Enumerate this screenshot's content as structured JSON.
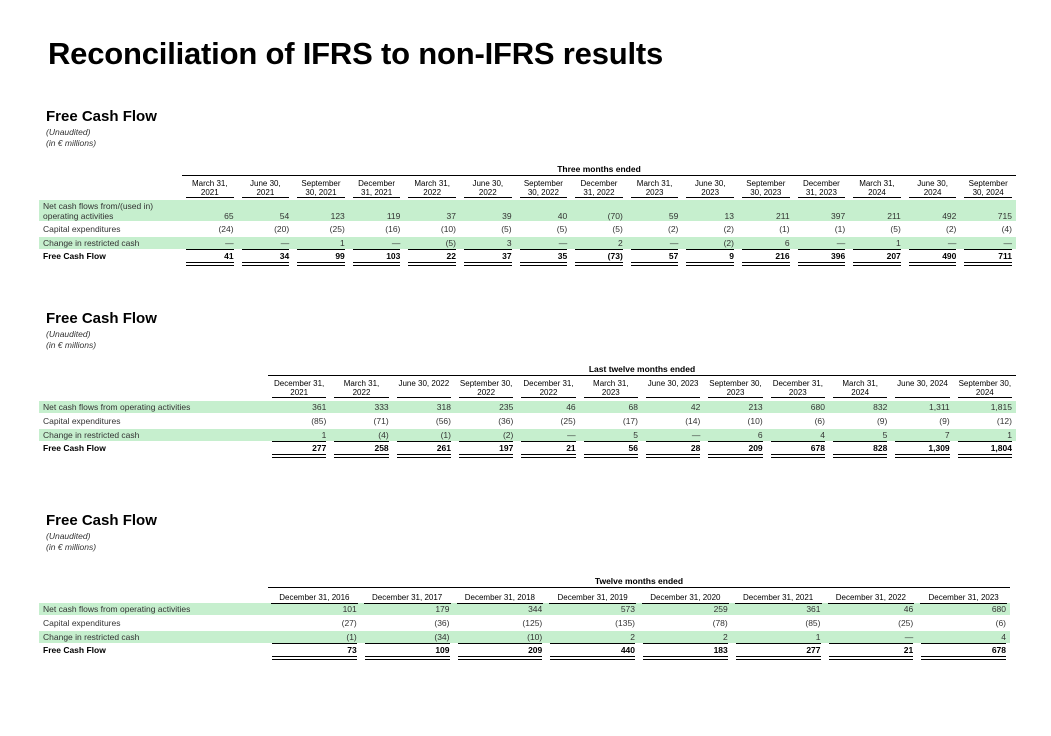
{
  "page_title": "Reconciliation of IFRS to non-IFRS results",
  "tables": [
    {
      "title": "Free Cash Flow",
      "subtitle1": "(Unaudited)",
      "subtitle2": "(in € millions)",
      "period": "Three months ended",
      "columns": [
        "March 31, 2021",
        "June 30, 2021",
        "September 30, 2021",
        "December 31, 2021",
        "March 31, 2022",
        "June 30, 2022",
        "September 30, 2022",
        "December 31, 2022",
        "March 31, 2023",
        "June 30, 2023",
        "September 30, 2023",
        "December 31, 2023",
        "March 31, 2024",
        "June 30, 2024",
        "September 30, 2024"
      ],
      "rows": [
        {
          "label": "Net cash flows from/(used in) operating activities",
          "values": [
            "65",
            "54",
            "123",
            "119",
            "37",
            "39",
            "40",
            "(70)",
            "59",
            "13",
            "211",
            "397",
            "211",
            "492",
            "715"
          ]
        },
        {
          "label": "Capital expenditures",
          "values": [
            "(24)",
            "(20)",
            "(25)",
            "(16)",
            "(10)",
            "(5)",
            "(5)",
            "(5)",
            "(2)",
            "(2)",
            "(1)",
            "(1)",
            "(5)",
            "(2)",
            "(4)"
          ]
        },
        {
          "label": "Change in restricted cash",
          "values": [
            "—",
            "—",
            "1",
            "—",
            "(5)",
            "3",
            "—",
            "2",
            "—",
            "(2)",
            "6",
            "—",
            "1",
            "—",
            "—"
          ]
        },
        {
          "label": "Free Cash Flow",
          "values": [
            "41",
            "34",
            "99",
            "103",
            "22",
            "37",
            "35",
            "(73)",
            "57",
            "9",
            "216",
            "396",
            "207",
            "490",
            "711"
          ]
        }
      ]
    },
    {
      "title": "Free Cash Flow",
      "subtitle1": "(Unaudited)",
      "subtitle2": "(in € millions)",
      "period": "Last twelve months ended",
      "columns": [
        "December 31, 2021",
        "March 31, 2022",
        "June 30, 2022",
        "September 30, 2022",
        "December 31, 2022",
        "March 31, 2023",
        "June 30, 2023",
        "September 30, 2023",
        "December 31, 2023",
        "March 31, 2024",
        "June 30, 2024",
        "September 30, 2024"
      ],
      "rows": [
        {
          "label": "Net cash flows from operating activities",
          "values": [
            "361",
            "333",
            "318",
            "235",
            "46",
            "68",
            "42",
            "213",
            "680",
            "832",
            "1,311",
            "1,815"
          ]
        },
        {
          "label": "Capital expenditures",
          "values": [
            "(85)",
            "(71)",
            "(56)",
            "(36)",
            "(25)",
            "(17)",
            "(14)",
            "(10)",
            "(6)",
            "(9)",
            "(9)",
            "(12)"
          ]
        },
        {
          "label": "Change in restricted cash",
          "values": [
            "1",
            "(4)",
            "(1)",
            "(2)",
            "—",
            "5",
            "—",
            "6",
            "4",
            "5",
            "7",
            "1"
          ]
        },
        {
          "label": "Free Cash Flow",
          "values": [
            "277",
            "258",
            "261",
            "197",
            "21",
            "56",
            "28",
            "209",
            "678",
            "828",
            "1,309",
            "1,804"
          ]
        }
      ]
    },
    {
      "title": "Free Cash Flow",
      "subtitle1": "(Unaudited)",
      "subtitle2": "(in € millions)",
      "period": "Twelve months ended",
      "columns": [
        "December 31, 2016",
        "December 31, 2017",
        "December 31, 2018",
        "December 31, 2019",
        "December 31, 2020",
        "December 31, 2021",
        "December 31, 2022",
        "December 31, 2023"
      ],
      "rows": [
        {
          "label": "Net cash flows from operating activities",
          "values": [
            "101",
            "179",
            "344",
            "573",
            "259",
            "361",
            "46",
            "680"
          ]
        },
        {
          "label": "Capital expenditures",
          "values": [
            "(27)",
            "(36)",
            "(125)",
            "(135)",
            "(78)",
            "(85)",
            "(25)",
            "(6)"
          ]
        },
        {
          "label": "Change in restricted cash",
          "values": [
            "(1)",
            "(34)",
            "(10)",
            "2",
            "2",
            "1",
            "—",
            "4"
          ]
        },
        {
          "label": "Free Cash Flow",
          "values": [
            "73",
            "109",
            "209",
            "440",
            "183",
            "277",
            "21",
            "678"
          ]
        }
      ]
    }
  ]
}
